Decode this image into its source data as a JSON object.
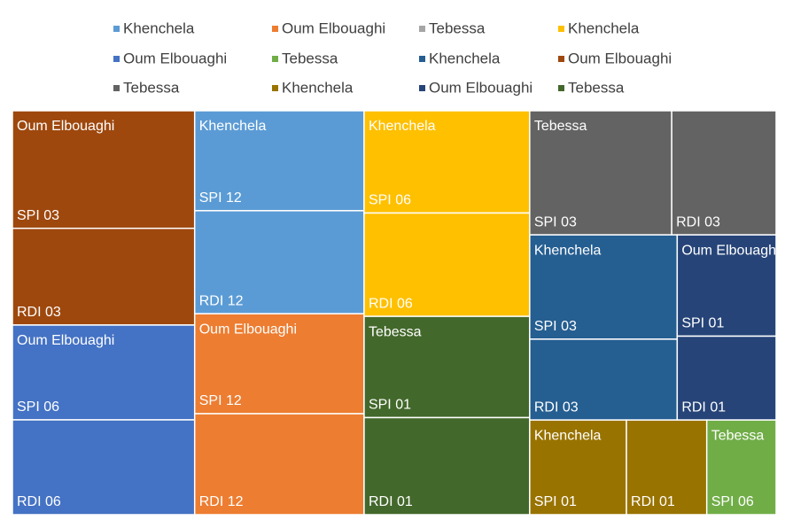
{
  "chart_data": {
    "type": "treemap",
    "series": [
      {
        "name": "Khenchela",
        "color": "#5b9bd5",
        "labels": [
          "SPI 12",
          "RDI 12"
        ],
        "values": [
          98,
          101
        ]
      },
      {
        "name": "Oum Elbouaghi",
        "color": "#ed7d31",
        "labels": [
          "SPI 12",
          "RDI 12"
        ],
        "values": [
          98,
          99
        ]
      },
      {
        "name": "Tebessa",
        "color": "#a5a5a5",
        "labels": [],
        "values": []
      },
      {
        "name": "Khenchela",
        "color": "#ffc000",
        "labels": [
          "SPI 06",
          "RDI 06"
        ],
        "values": [
          98,
          99
        ]
      },
      {
        "name": "Oum Elbouaghi",
        "color": "#4472c4",
        "labels": [
          "SPI 06",
          "RDI 06"
        ],
        "values": [
          100,
          100
        ]
      },
      {
        "name": "Tebessa",
        "color": "#70ad47",
        "labels": [
          "SPI 06"
        ],
        "values": [
          38
        ]
      },
      {
        "name": "Khenchela",
        "color": "#255e91",
        "labels": [
          "SPI 03",
          "RDI 03"
        ],
        "values": [
          89,
          69
        ]
      },
      {
        "name": "Oum Elbouaghi",
        "color": "#9e480e",
        "labels": [
          "SPI 03",
          "RDI 03"
        ],
        "values": [
          124,
          102
        ]
      },
      {
        "name": "Tebessa",
        "color": "#636363",
        "labels": [
          "SPI 03",
          "RDI 03"
        ],
        "values": [
          102,
          75
        ]
      },
      {
        "name": "Khenchela",
        "color": "#997300",
        "labels": [
          "SPI 01",
          "RDI 01"
        ],
        "values": [
          53,
          44
        ]
      },
      {
        "name": "Oum Elbouaghi",
        "color": "#264478",
        "labels": [
          "SPI 01",
          "RDI 01"
        ],
        "values": [
          58,
          48
        ]
      },
      {
        "name": "Tebessa",
        "color": "#43682b",
        "labels": [
          "SPI 01",
          "RDI 01"
        ],
        "values": [
          97,
          93
        ]
      }
    ]
  }
}
